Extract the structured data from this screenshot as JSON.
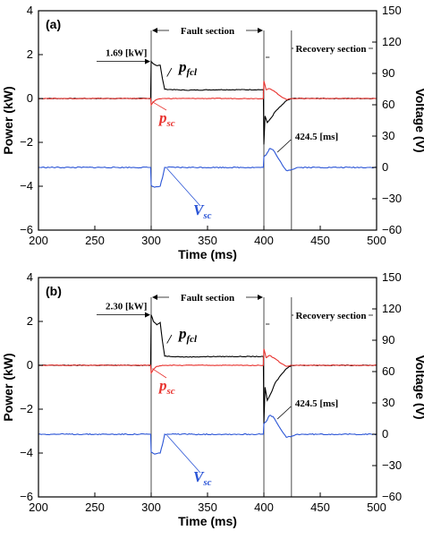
{
  "chart_data": [
    {
      "type": "line",
      "panel_label": "(a)",
      "xlabel": "Time (ms)",
      "ylabel_left": "Power (kW)",
      "ylabel_right": "Voltage (V)",
      "xlim": [
        200,
        500
      ],
      "ylim_left": [
        -6,
        4
      ],
      "ylim_right": [
        -60,
        150
      ],
      "xticks": [
        "200",
        "250",
        "300",
        "350",
        "400",
        "450",
        "500"
      ],
      "yticks_left": [
        "4",
        "2",
        "0",
        "−2",
        "−4",
        "−6"
      ],
      "yticks_right": [
        "150",
        "120",
        "90",
        "60",
        "30",
        "0",
        "−30",
        "−60"
      ],
      "annotations": {
        "fault_section": "Fault section",
        "recovery_section": "Recovery section",
        "peak_value": "1.69 [kW]",
        "recovery_time": "424.5 [ms]"
      },
      "series": [
        {
          "name": "p_fcl",
          "label_main": "p",
          "label_sub": "fcl",
          "color": "#000000",
          "axis": "left",
          "x": [
            200,
            299.5,
            300,
            302,
            305,
            308,
            310,
            312,
            330,
            360,
            399.5,
            400,
            401,
            403,
            407,
            410,
            415,
            420,
            424.5,
            430,
            500
          ],
          "values": [
            0,
            0,
            1.69,
            1.58,
            1.5,
            1.52,
            0.9,
            0.42,
            0.38,
            0.4,
            0.4,
            -2.1,
            -0.8,
            -1.1,
            -0.85,
            -0.6,
            -0.35,
            -0.1,
            0,
            0,
            0
          ]
        },
        {
          "name": "p_sc",
          "label_main": "p",
          "label_sub": "sc",
          "color": "#e8322e",
          "axis": "left",
          "x": [
            200,
            299.5,
            300,
            302,
            305,
            310,
            330,
            399.5,
            400,
            402,
            405,
            410,
            415,
            420,
            424.5,
            430,
            500
          ],
          "values": [
            0,
            0,
            -0.3,
            -0.15,
            -0.05,
            0,
            0,
            0,
            0.8,
            0.4,
            0.45,
            0.3,
            0.1,
            -0.05,
            0,
            0,
            0
          ]
        },
        {
          "name": "V_sc",
          "label_main": "V",
          "label_sub": "sc",
          "color": "#2b55d6",
          "axis": "right",
          "x": [
            200,
            299.5,
            300,
            303,
            308,
            310,
            312,
            399.5,
            400,
            402,
            405,
            408,
            412,
            416,
            420,
            424.5,
            430,
            500
          ],
          "values": [
            0,
            0,
            -17,
            -19,
            -18,
            -10,
            0,
            0,
            10,
            12,
            18,
            17,
            10,
            3,
            -3,
            -2,
            0,
            0
          ]
        }
      ]
    },
    {
      "type": "line",
      "panel_label": "(b)",
      "xlabel": "Time (ms)",
      "ylabel_left": "Power (kW)",
      "ylabel_right": "Voltage (V)",
      "xlim": [
        200,
        500
      ],
      "ylim_left": [
        -6,
        4
      ],
      "ylim_right": [
        -60,
        150
      ],
      "xticks": [
        "200",
        "250",
        "300",
        "350",
        "400",
        "450",
        "500"
      ],
      "yticks_left": [
        "4",
        "2",
        "0",
        "−2",
        "−4",
        "−6"
      ],
      "yticks_right": [
        "150",
        "120",
        "90",
        "60",
        "30",
        "0",
        "−30",
        "−60"
      ],
      "annotations": {
        "fault_section": "Fault section",
        "recovery_section": "Recovery section",
        "peak_value": "2.30 [kW]",
        "recovery_time": "424.5 [ms]"
      },
      "series": [
        {
          "name": "p_fcl",
          "label_main": "p",
          "label_sub": "fcl",
          "color": "#000000",
          "axis": "left",
          "x": [
            200,
            299.5,
            300,
            302,
            305,
            308,
            310,
            312,
            330,
            360,
            399.5,
            400,
            401,
            403,
            407,
            410,
            415,
            420,
            424.5,
            430,
            500
          ],
          "values": [
            0,
            0,
            2.3,
            2.0,
            1.85,
            1.95,
            1.1,
            0.42,
            0.38,
            0.4,
            0.4,
            -2.7,
            -1.0,
            -1.6,
            -1.2,
            -0.8,
            -0.45,
            -0.15,
            0,
            0,
            0
          ]
        },
        {
          "name": "p_sc",
          "label_main": "p",
          "label_sub": "sc",
          "color": "#e8322e",
          "axis": "left",
          "x": [
            200,
            299.5,
            300,
            302,
            305,
            310,
            330,
            399.5,
            400,
            402,
            405,
            410,
            415,
            420,
            424.5,
            430,
            500
          ],
          "values": [
            0,
            0,
            -0.35,
            -0.18,
            -0.05,
            0,
            0,
            0,
            0.75,
            0.35,
            0.45,
            0.3,
            0.1,
            -0.05,
            0,
            0,
            0
          ]
        },
        {
          "name": "V_sc",
          "label_main": "V",
          "label_sub": "sc",
          "color": "#2b55d6",
          "axis": "right",
          "x": [
            200,
            299.5,
            300,
            303,
            308,
            310,
            312,
            399.5,
            400,
            402,
            405,
            408,
            412,
            416,
            420,
            424.5,
            430,
            500
          ],
          "values": [
            0,
            0,
            -17,
            -19,
            -18,
            -10,
            0,
            0,
            10,
            12,
            18,
            17,
            10,
            3,
            -3,
            -2,
            0,
            0
          ]
        }
      ]
    }
  ]
}
